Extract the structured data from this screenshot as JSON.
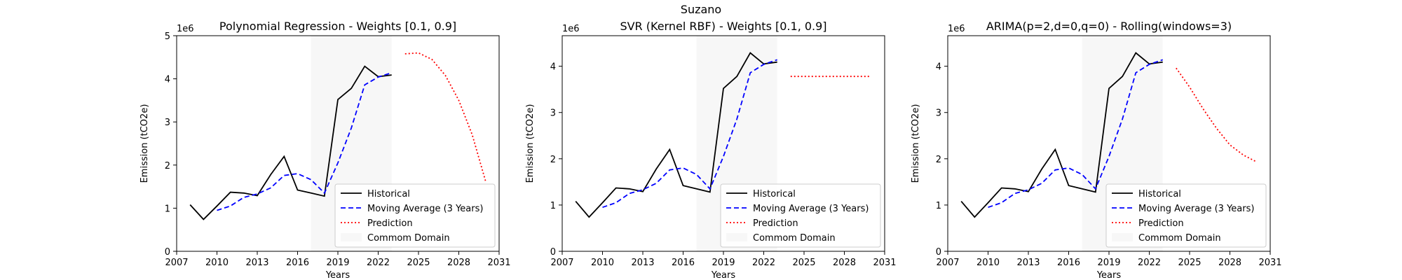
{
  "figure": {
    "suptitle": "Suzano"
  },
  "colors": {
    "historical": "#000000",
    "moving_average": "#0000ff",
    "prediction": "#ff0000",
    "common_domain": "#f2f2f2"
  },
  "chart_data": [
    {
      "type": "line",
      "title": "Polynomial Regression - Weights [0.1, 0.9]",
      "xlabel": "Years",
      "ylabel": "Emission (tCO2e)",
      "y_multiplier_label": "1e6",
      "xlim": [
        2007,
        2031
      ],
      "ylim": [
        0,
        5
      ],
      "xticks": [
        2007,
        2010,
        2013,
        2016,
        2019,
        2022,
        2025,
        2028,
        2031
      ],
      "yticks": [
        0,
        1,
        2,
        3,
        4,
        5
      ],
      "legend_position": "lower-right",
      "common_domain": [
        2017,
        2023
      ],
      "series": [
        {
          "name": "Historical",
          "style": "solid",
          "color": "#000000",
          "x": [
            2008,
            2009,
            2010,
            2011,
            2012,
            2013,
            2014,
            2015,
            2016,
            2017,
            2018,
            2019,
            2020,
            2021,
            2022,
            2023
          ],
          "y": [
            1.08,
            0.74,
            1.05,
            1.37,
            1.35,
            1.29,
            1.78,
            2.2,
            1.42,
            1.35,
            1.28,
            3.52,
            3.78,
            4.29,
            4.05,
            4.09
          ]
        },
        {
          "name": "Moving Average (3 Years)",
          "style": "dashed",
          "color": "#0000ff",
          "x": [
            2010,
            2011,
            2012,
            2013,
            2014,
            2015,
            2016,
            2017,
            2018,
            2019,
            2020,
            2021,
            2022,
            2023
          ],
          "y": [
            0.95,
            1.05,
            1.25,
            1.33,
            1.47,
            1.76,
            1.8,
            1.66,
            1.35,
            2.05,
            2.86,
            3.86,
            4.04,
            4.14
          ]
        },
        {
          "name": "Prediction",
          "style": "dotted",
          "color": "#ff0000",
          "x": [
            2024,
            2025,
            2026,
            2027,
            2028,
            2029,
            2030
          ],
          "y": [
            4.58,
            4.6,
            4.45,
            4.08,
            3.5,
            2.7,
            1.62
          ]
        }
      ],
      "legend": [
        "Historical",
        "Moving Average (3 Years)",
        "Prediction",
        "Commom Domain"
      ]
    },
    {
      "type": "line",
      "title": "SVR (Kernel RBF) - Weights [0.1, 0.9]",
      "xlabel": "Years",
      "ylabel": "Emission (tCO2e)",
      "y_multiplier_label": "1e6",
      "xlim": [
        2007,
        2031
      ],
      "ylim": [
        0,
        4.66
      ],
      "xticks": [
        2007,
        2010,
        2013,
        2016,
        2019,
        2022,
        2025,
        2028,
        2031
      ],
      "yticks": [
        0,
        1,
        2,
        3,
        4
      ],
      "legend_position": "lower-right",
      "common_domain": [
        2017,
        2023
      ],
      "series": [
        {
          "name": "Historical",
          "style": "solid",
          "color": "#000000",
          "x": [
            2008,
            2009,
            2010,
            2011,
            2012,
            2013,
            2014,
            2015,
            2016,
            2017,
            2018,
            2019,
            2020,
            2021,
            2022,
            2023
          ],
          "y": [
            1.08,
            0.74,
            1.05,
            1.37,
            1.35,
            1.29,
            1.78,
            2.2,
            1.42,
            1.35,
            1.28,
            3.52,
            3.78,
            4.29,
            4.05,
            4.09
          ]
        },
        {
          "name": "Moving Average (3 Years)",
          "style": "dashed",
          "color": "#0000ff",
          "x": [
            2010,
            2011,
            2012,
            2013,
            2014,
            2015,
            2016,
            2017,
            2018,
            2019,
            2020,
            2021,
            2022,
            2023
          ],
          "y": [
            0.95,
            1.05,
            1.25,
            1.33,
            1.47,
            1.76,
            1.8,
            1.66,
            1.35,
            2.05,
            2.86,
            3.86,
            4.04,
            4.14
          ]
        },
        {
          "name": "Prediction",
          "style": "dotted",
          "color": "#ff0000",
          "x": [
            2024,
            2025,
            2026,
            2027,
            2028,
            2029,
            2030
          ],
          "y": [
            3.78,
            3.78,
            3.78,
            3.78,
            3.78,
            3.78,
            3.78
          ]
        }
      ],
      "legend": [
        "Historical",
        "Moving Average (3 Years)",
        "Prediction",
        "Commom Domain"
      ]
    },
    {
      "type": "line",
      "title": "ARIMA(p=2,d=0,q=0) - Rolling(windows=3)",
      "xlabel": "Years",
      "ylabel": "Emission (tCO2e)",
      "y_multiplier_label": "1e6",
      "xlim": [
        2007,
        2031
      ],
      "ylim": [
        0,
        4.66
      ],
      "xticks": [
        2007,
        2010,
        2013,
        2016,
        2019,
        2022,
        2025,
        2028,
        2031
      ],
      "yticks": [
        0,
        1,
        2,
        3,
        4
      ],
      "legend_position": "lower-right",
      "common_domain": [
        2017,
        2023
      ],
      "series": [
        {
          "name": "Historical",
          "style": "solid",
          "color": "#000000",
          "x": [
            2008,
            2009,
            2010,
            2011,
            2012,
            2013,
            2014,
            2015,
            2016,
            2017,
            2018,
            2019,
            2020,
            2021,
            2022,
            2023
          ],
          "y": [
            1.08,
            0.74,
            1.05,
            1.37,
            1.35,
            1.29,
            1.78,
            2.2,
            1.42,
            1.35,
            1.28,
            3.52,
            3.78,
            4.29,
            4.05,
            4.09
          ]
        },
        {
          "name": "Moving Average (3 Years)",
          "style": "dashed",
          "color": "#0000ff",
          "x": [
            2010,
            2011,
            2012,
            2013,
            2014,
            2015,
            2016,
            2017,
            2018,
            2019,
            2020,
            2021,
            2022,
            2023
          ],
          "y": [
            0.95,
            1.05,
            1.25,
            1.33,
            1.47,
            1.76,
            1.8,
            1.66,
            1.35,
            2.05,
            2.86,
            3.86,
            4.04,
            4.14
          ]
        },
        {
          "name": "Prediction",
          "style": "dotted",
          "color": "#ff0000",
          "x": [
            2024,
            2025,
            2026,
            2027,
            2028,
            2029,
            2030
          ],
          "y": [
            3.96,
            3.55,
            3.08,
            2.66,
            2.3,
            2.08,
            1.93
          ]
        }
      ],
      "legend": [
        "Historical",
        "Moving Average (3 Years)",
        "Prediction",
        "Commom Domain"
      ]
    }
  ]
}
